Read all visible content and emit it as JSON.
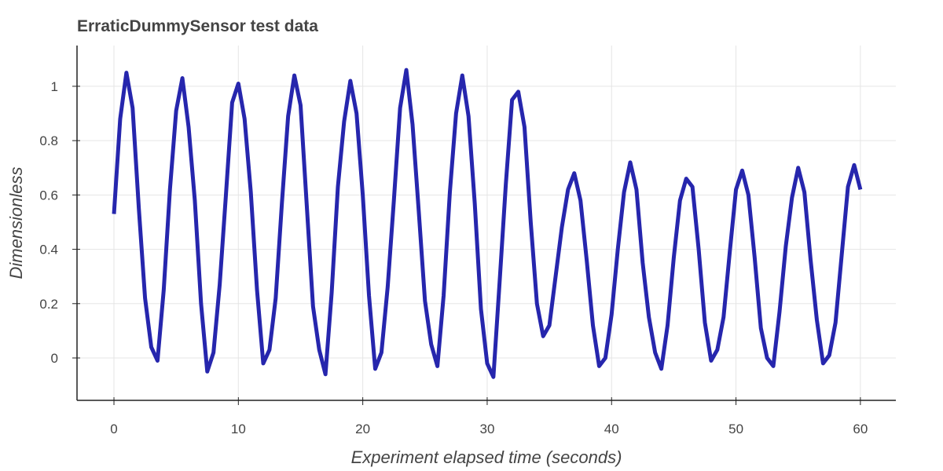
{
  "chart_data": {
    "type": "line",
    "title": "ErraticDummySensor test data",
    "x_label": "Experiment elapsed time (seconds)",
    "y_label": "Dimensionless",
    "color": "#2626ad",
    "grid": true,
    "xlim": [
      -2.97,
      62.85
    ],
    "ylim": [
      -0.156,
      1.15
    ],
    "xticks": [
      0,
      10,
      20,
      30,
      40,
      50,
      60
    ],
    "yticks": [
      0,
      0.2,
      0.4,
      0.6,
      0.8,
      1
    ],
    "x": [
      0,
      0.5,
      1,
      1.5,
      2,
      2.5,
      3,
      3.5,
      4,
      4.5,
      5,
      5.5,
      6,
      6.5,
      7,
      7.5,
      8,
      8.5,
      9,
      9.5,
      10,
      10.5,
      11,
      11.5,
      12,
      12.5,
      13,
      13.5,
      14,
      14.5,
      15,
      15.5,
      16,
      16.5,
      17,
      17.5,
      18,
      18.5,
      19,
      19.5,
      20,
      20.5,
      21,
      21.5,
      22,
      22.5,
      23,
      23.5,
      24,
      24.5,
      25,
      25.5,
      26,
      26.5,
      27,
      27.5,
      28,
      28.5,
      29,
      29.5,
      30,
      30.5,
      31,
      31.5,
      32,
      32.5,
      33,
      33.5,
      34,
      34.5,
      35,
      35.5,
      36,
      36.5,
      37,
      37.5,
      38,
      38.5,
      39,
      39.5,
      40,
      40.5,
      41,
      41.5,
      42,
      42.5,
      43,
      43.5,
      44,
      44.5,
      45,
      45.5,
      46,
      46.5,
      47,
      47.5,
      48,
      48.5,
      49,
      49.5,
      50,
      50.5,
      51,
      51.5,
      52,
      52.5,
      53,
      53.5,
      54,
      54.5,
      55,
      55.5,
      56,
      56.5,
      57,
      57.5,
      58,
      58.5,
      59,
      59.5,
      60
    ],
    "values": [
      0.53,
      0.88,
      1.05,
      0.92,
      0.55,
      0.22,
      0.04,
      -0.01,
      0.25,
      0.62,
      0.91,
      1.03,
      0.85,
      0.58,
      0.2,
      -0.05,
      0.02,
      0.27,
      0.6,
      0.94,
      1.01,
      0.88,
      0.61,
      0.25,
      -0.02,
      0.03,
      0.22,
      0.57,
      0.89,
      1.04,
      0.93,
      0.56,
      0.19,
      0.03,
      -0.06,
      0.24,
      0.63,
      0.87,
      1.02,
      0.9,
      0.6,
      0.23,
      -0.04,
      0.02,
      0.26,
      0.58,
      0.92,
      1.06,
      0.86,
      0.54,
      0.21,
      0.05,
      -0.03,
      0.23,
      0.61,
      0.9,
      1.04,
      0.89,
      0.57,
      0.18,
      -0.02,
      -0.07,
      0.28,
      0.64,
      0.95,
      0.98,
      0.85,
      0.5,
      0.2,
      0.08,
      0.12,
      0.3,
      0.48,
      0.62,
      0.68,
      0.58,
      0.36,
      0.12,
      -0.03,
      0.0,
      0.16,
      0.4,
      0.61,
      0.72,
      0.62,
      0.35,
      0.15,
      0.02,
      -0.04,
      0.12,
      0.37,
      0.58,
      0.66,
      0.63,
      0.4,
      0.13,
      -0.01,
      0.03,
      0.15,
      0.39,
      0.62,
      0.69,
      0.6,
      0.37,
      0.11,
      0.0,
      -0.03,
      0.17,
      0.41,
      0.59,
      0.7,
      0.61,
      0.36,
      0.14,
      -0.02,
      0.01,
      0.13,
      0.38,
      0.63,
      0.71,
      0.62
    ]
  }
}
